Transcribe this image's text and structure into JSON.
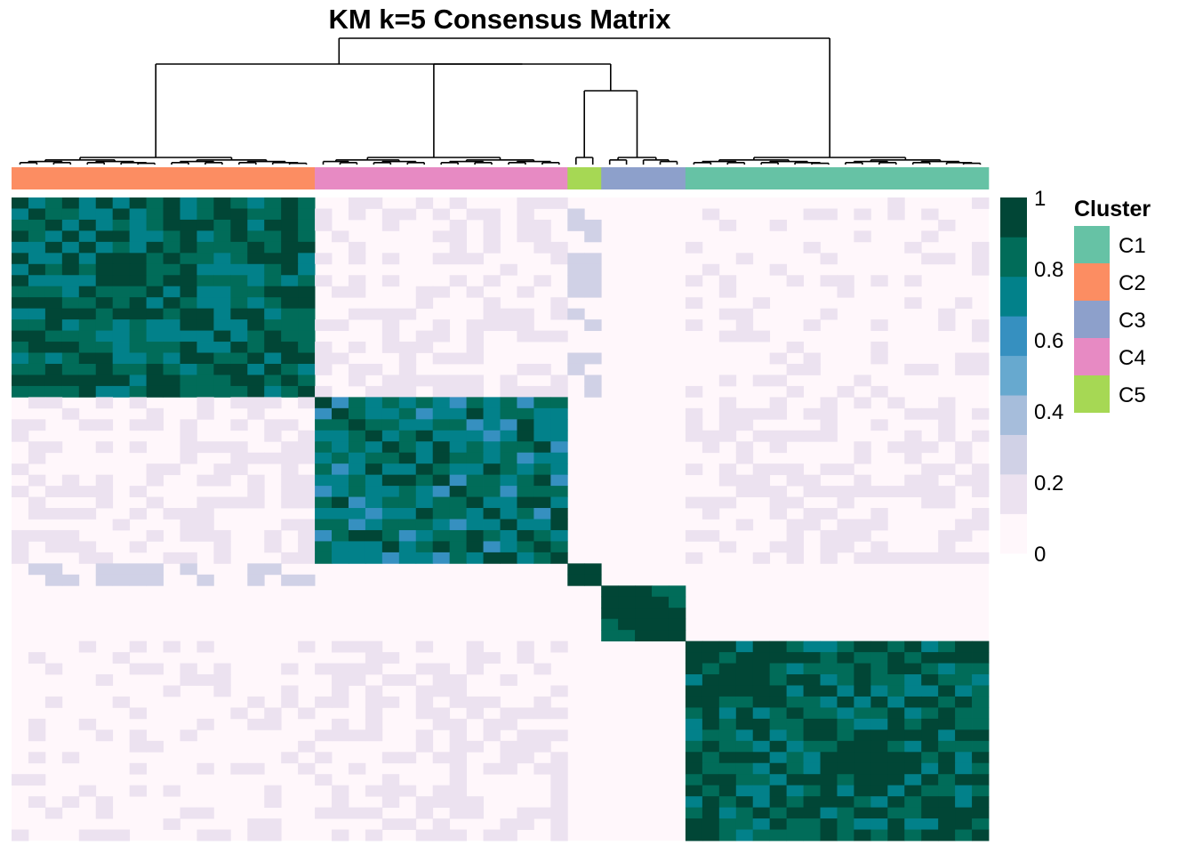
{
  "chart_data": {
    "type": "heatmap",
    "title": "KM k=5 Consensus Matrix",
    "n_samples": 58,
    "value_range": [
      0,
      1
    ],
    "colorbar": {
      "ticks": [
        "1",
        "0.8",
        "0.6",
        "0.4",
        "0.2",
        "0"
      ],
      "colors": [
        "#fff7fb",
        "#ece2f0",
        "#d0d1e6",
        "#a6bddb",
        "#67a9cf",
        "#3690c0",
        "#02818a",
        "#016c59",
        "#014636"
      ]
    },
    "legend": {
      "title": "Cluster",
      "placement": "right",
      "entries": [
        {
          "label": "C1",
          "color": "#66c2a5"
        },
        {
          "label": "C2",
          "color": "#fc8d62"
        },
        {
          "label": "C3",
          "color": "#8da0cb"
        },
        {
          "label": "C4",
          "color": "#e78ac3"
        },
        {
          "label": "C5",
          "color": "#a6d854"
        }
      ]
    },
    "column_annotation": [
      {
        "cluster": "C2",
        "size": 18
      },
      {
        "cluster": "C4",
        "size": 15
      },
      {
        "cluster": "C5",
        "size": 2
      },
      {
        "cluster": "C3",
        "size": 5
      },
      {
        "cluster": "C1",
        "size": 18
      }
    ],
    "blocks": [
      {
        "name": "C2",
        "start": 0,
        "end": 18,
        "within": 0.85
      },
      {
        "name": "C4",
        "start": 18,
        "end": 33,
        "within": 0.75
      },
      {
        "name": "C5",
        "start": 33,
        "end": 35,
        "within": 1.0
      },
      {
        "name": "C3",
        "start": 35,
        "end": 40,
        "within": 0.95
      },
      {
        "name": "C1",
        "start": 40,
        "end": 58,
        "within": 0.88
      }
    ],
    "block_pairs": [
      {
        "a": "C2",
        "b": "C4",
        "value": 0.12
      },
      {
        "a": "C2",
        "b": "C5",
        "value": 0.2
      },
      {
        "a": "C2",
        "b": "C1",
        "value": 0.08
      },
      {
        "a": "C4",
        "b": "C1",
        "value": 0.1
      },
      {
        "a": "C2",
        "b": "C3",
        "value": 0.0
      },
      {
        "a": "C4",
        "b": "C3",
        "value": 0.0
      },
      {
        "a": "C5",
        "b": "C3",
        "value": 0.0
      },
      {
        "a": "C5",
        "b": "C1",
        "value": 0.0
      },
      {
        "a": "C3",
        "b": "C1",
        "value": 0.0
      }
    ]
  }
}
